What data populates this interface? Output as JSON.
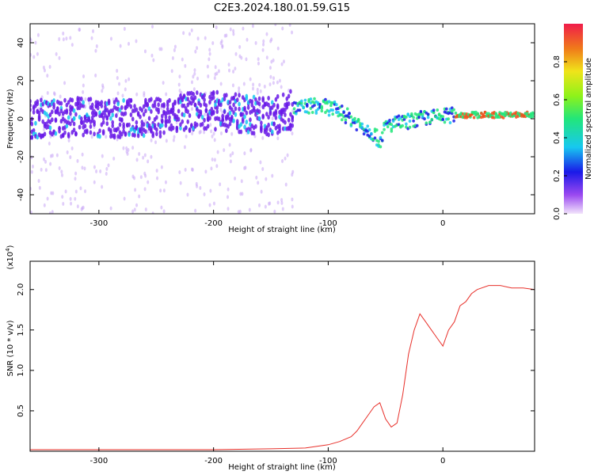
{
  "title": "C2E3.2024.180.01.59.G15",
  "chart_data": [
    {
      "type": "heatmap",
      "xlabel": "Height of straight line (km)",
      "ylabel": "Frequency (Hz)",
      "xlim": [
        -360,
        80
      ],
      "ylim": [
        -50,
        50
      ],
      "xticks": [
        -300,
        -200,
        -100,
        0
      ],
      "yticks": [
        -40,
        -20,
        0,
        20,
        40
      ],
      "ridge": {
        "x": [
          -360,
          -320,
          -280,
          -240,
          -210,
          -180,
          -150,
          -130,
          -115,
          -100,
          -90,
          -80,
          -70,
          -60,
          -55,
          -50,
          -45,
          -35,
          -20,
          -5,
          10,
          30,
          60,
          80
        ],
        "y": [
          0,
          1,
          0,
          1,
          5,
          3,
          1,
          5,
          7,
          6,
          4,
          0,
          -4,
          -8,
          -12,
          -4,
          -3,
          -2,
          0,
          1,
          2,
          2,
          2,
          2
        ]
      },
      "colorbar": {
        "label": "Normalized spectral amplitude",
        "range": [
          0,
          1
        ],
        "ticks": [
          0.0,
          0.2,
          0.4,
          0.6,
          0.8
        ]
      }
    },
    {
      "type": "line",
      "xlabel": "Height of straight line (km)",
      "ylabel": "SNR (10 * v/v)",
      "scale_note": "(x10",
      "scale_exp": "4",
      "xlim": [
        -360,
        80
      ],
      "ylim": [
        0,
        2.35
      ],
      "xticks": [
        -300,
        -200,
        -100,
        0
      ],
      "yticks": [
        0.5,
        1.0,
        1.5,
        2.0
      ],
      "color": "#e8302a",
      "series": [
        {
          "x": [
            -360,
            -300,
            -250,
            -200,
            -150,
            -120,
            -100,
            -90,
            -80,
            -75,
            -70,
            -65,
            -60,
            -55,
            -50,
            -45,
            -40,
            -35,
            -30,
            -25,
            -20,
            -15,
            -10,
            -5,
            0,
            5,
            10,
            15,
            20,
            25,
            30,
            40,
            50,
            60,
            70,
            80
          ],
          "y": [
            0.02,
            0.02,
            0.02,
            0.02,
            0.03,
            0.04,
            0.08,
            0.12,
            0.18,
            0.25,
            0.35,
            0.45,
            0.55,
            0.6,
            0.4,
            0.3,
            0.35,
            0.7,
            1.2,
            1.5,
            1.7,
            1.6,
            1.5,
            1.4,
            1.3,
            1.5,
            1.6,
            1.8,
            1.85,
            1.95,
            2.0,
            2.05,
            2.05,
            2.02,
            2.02,
            2.0
          ]
        }
      ]
    }
  ]
}
